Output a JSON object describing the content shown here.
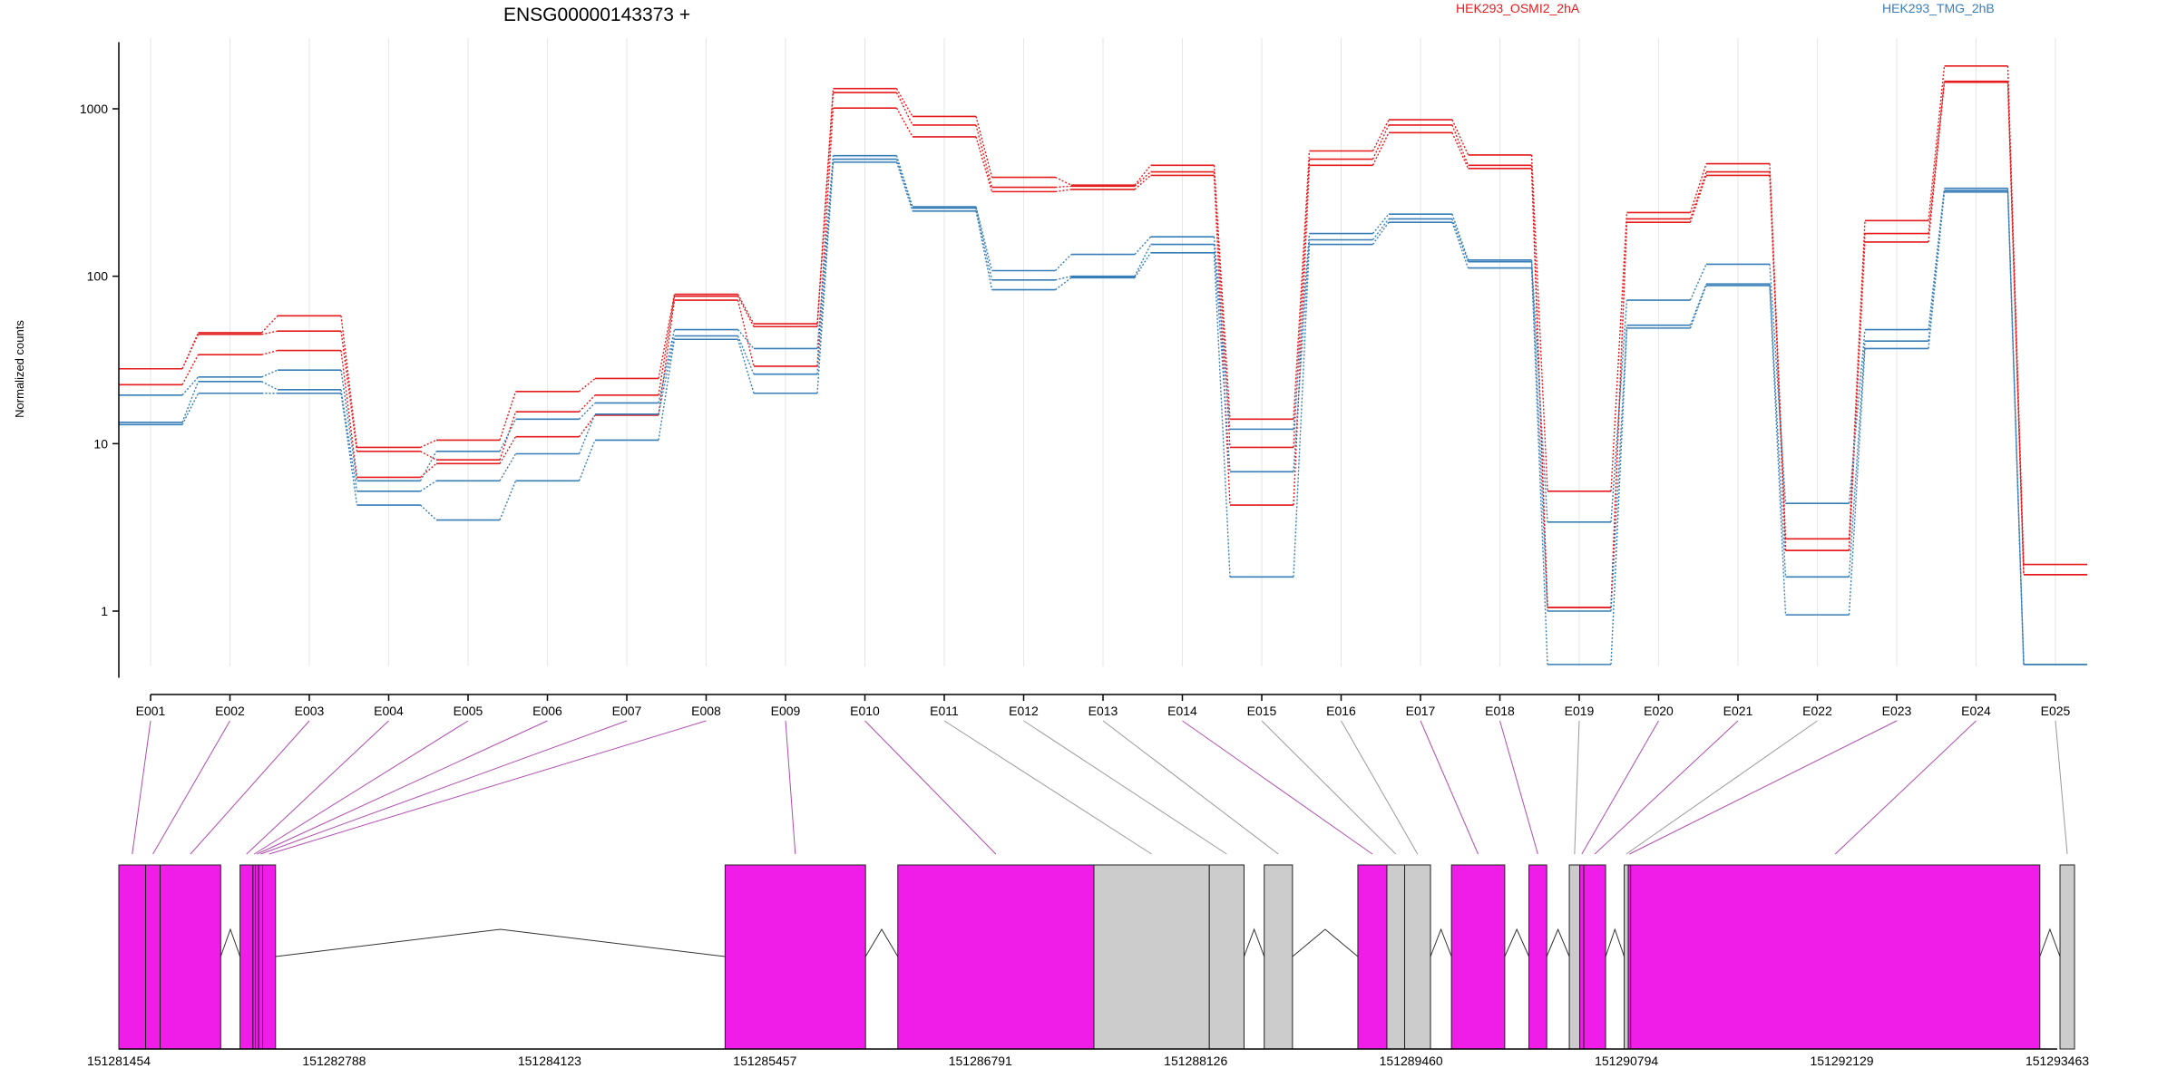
{
  "chart_data": {
    "type": "line",
    "title": "ENSG00000143373 +",
    "xlabel": "",
    "ylabel": "Normalized counts",
    "y_scale": "log",
    "ylim": [
      0.4,
      2500
    ],
    "y_ticks": [
      1,
      10,
      100,
      1000
    ],
    "y_tick_labels": [
      "1",
      "10",
      "100",
      "1000"
    ],
    "grid": "vertical lines at exon centers",
    "legend_position": "top-right",
    "categories": [
      "E001",
      "E002",
      "E003",
      "E004",
      "E005",
      "E006",
      "E007",
      "E008",
      "E009",
      "E010",
      "E011",
      "E012",
      "E013",
      "E014",
      "E015",
      "E016",
      "E017",
      "E018",
      "E019",
      "E020",
      "E021",
      "E022",
      "E023",
      "E024",
      "E025"
    ],
    "groups": [
      {
        "name": "HEK293_OSMI2_2hA",
        "color": "#e41a1c"
      },
      {
        "name": "HEK293_TMG_2hB",
        "color": "#377eb8"
      }
    ],
    "series": [
      {
        "group": "HEK293_OSMI2_2hA",
        "values": [
          28,
          46,
          58,
          9.5,
          10.5,
          20.5,
          24.5,
          78,
          52,
          1320,
          900,
          390,
          350,
          460,
          14,
          560,
          860,
          530,
          5.2,
          240,
          470,
          2.7,
          215,
          1800,
          1.9
        ]
      },
      {
        "group": "HEK293_OSMI2_2hA",
        "values": [
          28,
          45,
          47,
          9,
          8,
          15.5,
          19.5,
          76,
          50,
          1250,
          800,
          340,
          345,
          420,
          9.5,
          500,
          800,
          460,
          1.05,
          220,
          420,
          2.3,
          180,
          1460,
          1.65
        ]
      },
      {
        "group": "HEK293_OSMI2_2hA",
        "values": [
          22.5,
          34,
          36,
          6.3,
          7.6,
          11,
          14.8,
          72,
          29,
          1010,
          680,
          320,
          330,
          400,
          4.3,
          460,
          720,
          440,
          1.05,
          210,
          400,
          2.3,
          160,
          1440,
          1.65
        ]
      },
      {
        "group": "HEK293_TMG_2hB",
        "values": [
          19.5,
          25,
          27.5,
          6,
          9,
          14,
          17.5,
          48,
          37,
          525,
          260,
          108,
          135,
          172,
          12.2,
          180,
          235,
          125,
          3.4,
          72,
          118,
          4.4,
          48,
          335,
          0.48
        ]
      },
      {
        "group": "HEK293_TMG_2hB",
        "values": [
          13.4,
          23.5,
          21,
          5.2,
          6,
          8.7,
          15,
          44,
          26,
          500,
          255,
          95,
          100,
          155,
          6.8,
          165,
          220,
          122,
          1.0,
          51,
          90,
          1.6,
          41,
          325,
          0.48
        ]
      },
      {
        "group": "HEK293_TMG_2hB",
        "values": [
          13,
          20,
          20,
          4.3,
          3.5,
          6,
          10.5,
          42,
          20,
          480,
          245,
          83,
          98,
          138,
          1.6,
          155,
          210,
          112,
          0.48,
          49,
          88,
          0.95,
          37,
          318,
          0.48
        ]
      }
    ],
    "genomic_axis": {
      "ticks": [
        "151281454",
        "151282788",
        "151284123",
        "151285457",
        "151286791",
        "151288126",
        "151289460",
        "151290794",
        "151292129",
        "151293463"
      ],
      "range": [
        151281454,
        151293463
      ]
    },
    "gene_model": {
      "highlight_color": "#f01de8",
      "plain_color": "#cccccc",
      "exons": [
        {
          "id": "E001",
          "start": 151281454,
          "end": 151281620,
          "highlighted": true
        },
        {
          "id": "E002",
          "start": 151281620,
          "end": 151281710,
          "highlighted": true
        },
        {
          "id": "E003",
          "start": 151281710,
          "end": 151282085,
          "highlighted": true
        },
        {
          "id": "E004",
          "start": 151282205,
          "end": 151282285,
          "highlighted": true
        },
        {
          "id": "E005",
          "start": 151282285,
          "end": 151282300,
          "highlighted": true
        },
        {
          "id": "E006",
          "start": 151282300,
          "end": 151282320,
          "highlighted": true
        },
        {
          "id": "E007",
          "start": 151282320,
          "end": 151282345,
          "highlighted": true
        },
        {
          "id": "E008",
          "start": 151282345,
          "end": 151282425,
          "highlighted": true
        },
        {
          "id": "E009",
          "start": 151285210,
          "end": 151286080,
          "highlighted": true
        },
        {
          "id": "E010",
          "start": 151286280,
          "end": 151287495,
          "highlighted": true
        },
        {
          "id": "E011",
          "start": 151287495,
          "end": 151288210,
          "highlighted": false
        },
        {
          "id": "E012",
          "start": 151288210,
          "end": 151288425,
          "highlighted": false
        },
        {
          "id": "E013",
          "start": 151288550,
          "end": 151288725,
          "highlighted": false
        },
        {
          "id": "E014",
          "start": 151289130,
          "end": 151289310,
          "highlighted": true
        },
        {
          "id": "E015",
          "start": 151289310,
          "end": 151289420,
          "highlighted": false
        },
        {
          "id": "E016",
          "start": 151289420,
          "end": 151289580,
          "highlighted": false
        },
        {
          "id": "E017",
          "start": 151289710,
          "end": 151290040,
          "highlighted": true
        },
        {
          "id": "E018",
          "start": 151290190,
          "end": 151290300,
          "highlighted": true
        },
        {
          "id": "E019",
          "start": 151290440,
          "end": 151290505,
          "highlighted": false
        },
        {
          "id": "E020",
          "start": 151290505,
          "end": 151290530,
          "highlighted": true
        },
        {
          "id": "E021",
          "start": 151290530,
          "end": 151290665,
          "highlighted": true
        },
        {
          "id": "E022",
          "start": 151290780,
          "end": 151290805,
          "highlighted": false
        },
        {
          "id": "E023",
          "start": 151290805,
          "end": 151290820,
          "highlighted": true
        },
        {
          "id": "E024",
          "start": 151290820,
          "end": 151293355,
          "highlighted": true
        },
        {
          "id": "E025",
          "start": 151293480,
          "end": 151293570,
          "highlighted": false
        }
      ]
    }
  }
}
